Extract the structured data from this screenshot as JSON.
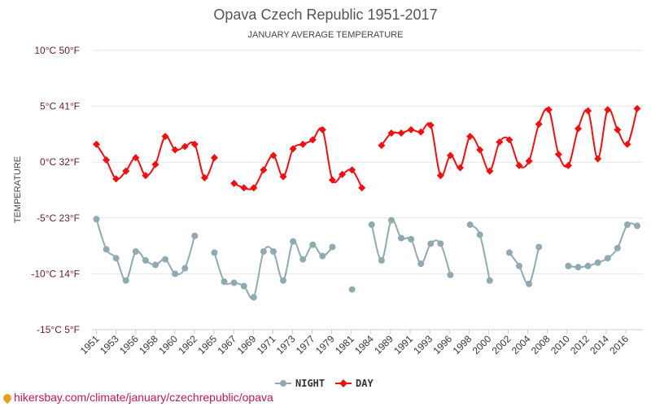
{
  "footer_text": "hikersbay.com/climate/january/czechrepublic/opava",
  "chart_data": {
    "type": "line",
    "title": "Opava Czech Republic 1951-2017",
    "subtitle": "JANUARY AVERAGE TEMPERATURE",
    "ylabel": "TEMPERATURE",
    "ylim": [
      -15,
      10
    ],
    "y_ticks": [
      {
        "value": 10,
        "label": "10°C 50°F"
      },
      {
        "value": 5,
        "label": "5°C 41°F"
      },
      {
        "value": 0,
        "label": "0°C 32°F"
      },
      {
        "value": -5,
        "label": "-5°C 23°F"
      },
      {
        "value": -10,
        "label": "-10°C 14°F"
      },
      {
        "value": -15,
        "label": "-15°C 5°F"
      }
    ],
    "x_ticks": [
      "1951",
      "1953",
      "1956",
      "1958",
      "1960",
      "1962",
      "1965",
      "1967",
      "1969",
      "1971",
      "1973",
      "1977",
      "1979",
      "1981",
      "1984",
      "1989",
      "1991",
      "1993",
      "1996",
      "1998",
      "2000",
      "2002",
      "2004",
      "2008",
      "2010",
      "2012",
      "2014",
      "2016"
    ],
    "grid": true,
    "legend_position": "bottom",
    "colors": {
      "night": "#90aab2",
      "day": "#ee1111",
      "grid": "#e6e6e6"
    },
    "series": [
      {
        "name": "NIGHT",
        "key": "night",
        "values": [
          -5.1,
          -7.8,
          -8.6,
          -10.6,
          -8,
          -8.8,
          -9.2,
          -8.7,
          -10,
          -9.5,
          -6.6,
          null,
          -8.1,
          -10.7,
          -10.8,
          -11.1,
          -12.1,
          -8,
          -8,
          -10.6,
          -7.1,
          -8.7,
          -7.4,
          -8.4,
          -7.6,
          null,
          -11.4,
          null,
          -5.6,
          -8.8,
          -5.2,
          -6.8,
          -6.9,
          -9.1,
          -7.3,
          -7.3,
          -10.1,
          null,
          -5.6,
          -6.5,
          -10.6,
          null,
          -8.1,
          -9.3,
          -10.9,
          -7.6,
          null,
          null,
          -9.3,
          -9.4,
          -9.3,
          -9,
          -8.6,
          -7.7,
          -5.6,
          -5.7
        ]
      },
      {
        "name": "DAY",
        "key": "day",
        "values": [
          1.6,
          0.2,
          -1.5,
          -0.8,
          0.4,
          -1.2,
          -0.2,
          2.3,
          1.1,
          1.4,
          1.6,
          -1.4,
          0.4,
          null,
          -1.9,
          -2.3,
          -2.3,
          -0.7,
          0.6,
          -1.3,
          1.2,
          1.6,
          2,
          2.9,
          -1.6,
          -1.1,
          -0.7,
          -2.3,
          null,
          1.5,
          2.6,
          2.6,
          2.9,
          2.7,
          3.3,
          -1.2,
          0.6,
          -0.5,
          2.3,
          1.1,
          -0.8,
          1.8,
          2,
          -0.3,
          0.1,
          3.4,
          4.7,
          0.7,
          -0.3,
          3,
          4.6,
          0.3,
          4.7,
          2.9,
          1.6,
          4.8
        ]
      }
    ]
  }
}
